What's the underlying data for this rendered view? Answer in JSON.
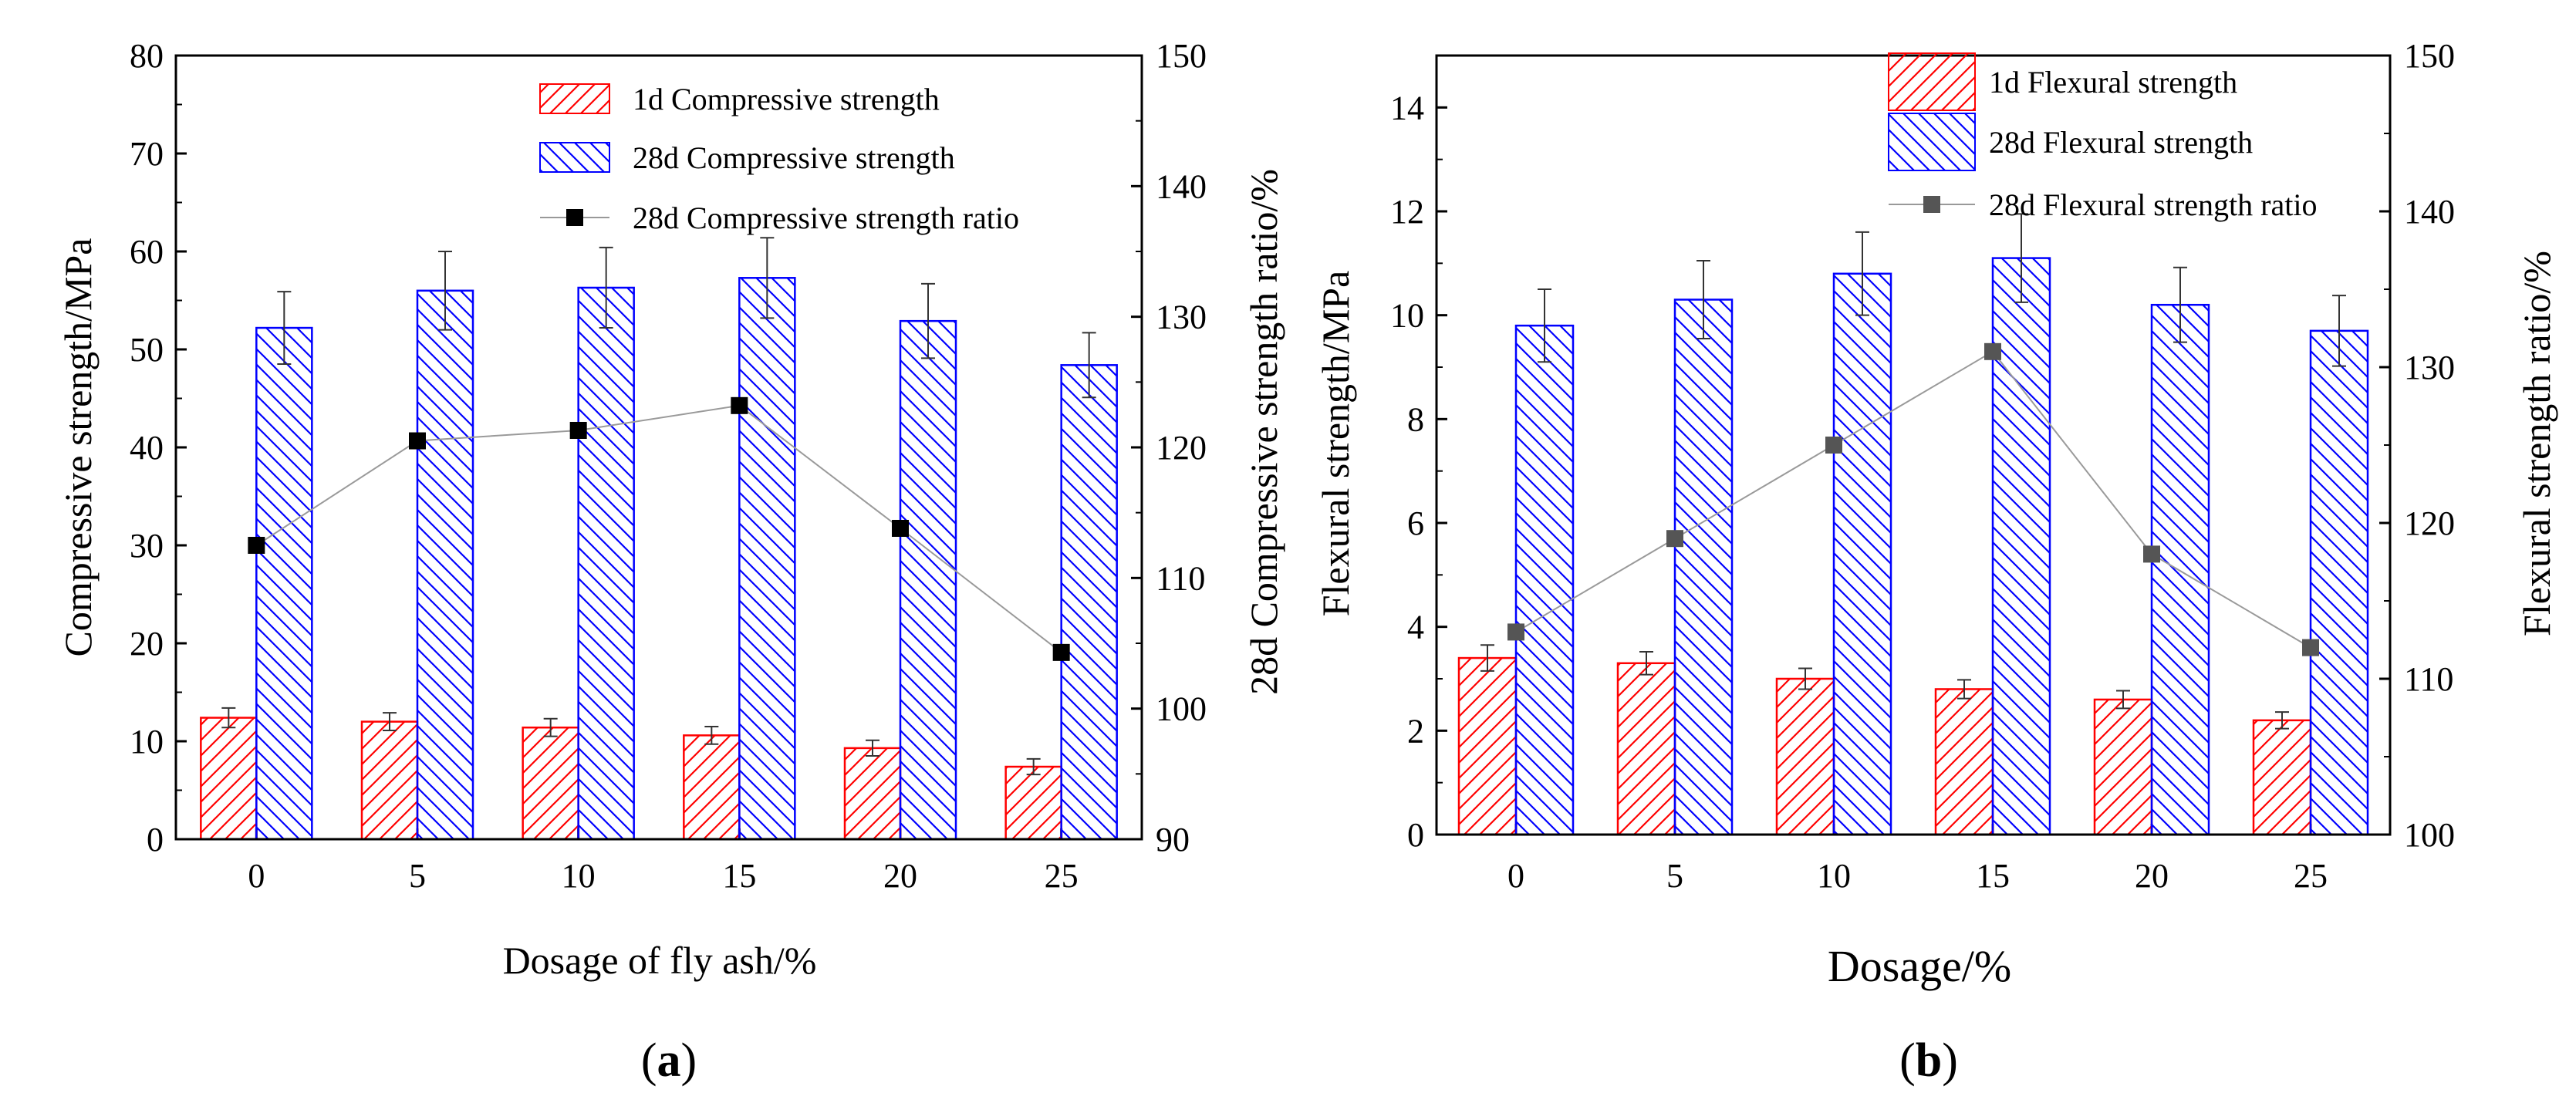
{
  "chart_data": [
    {
      "type": "bar",
      "panel_label_open": "(",
      "panel_label_letter": "a",
      "panel_label_close": ")",
      "categories": [
        "0",
        "5",
        "10",
        "15",
        "20",
        "25"
      ],
      "xlabel": "Dosage of fly ash/%",
      "ylabel": "Compressive strength/MPa",
      "y2label": "28d Compressive strength ratio/%",
      "ylim": [
        0,
        80
      ],
      "yticks": [
        0,
        10,
        20,
        30,
        40,
        50,
        60,
        70,
        80
      ],
      "y2lim": [
        90,
        150
      ],
      "y2ticks": [
        90,
        100,
        110,
        120,
        130,
        140,
        150
      ],
      "series": [
        {
          "name": "1d Compressive strength",
          "kind": "bar",
          "axis": "left",
          "color": "#ff0000",
          "hatch": "forward",
          "values": [
            12.4,
            12.0,
            11.4,
            10.6,
            9.3,
            7.4
          ],
          "errors": [
            1.0,
            0.9,
            0.9,
            0.9,
            0.8,
            0.8
          ]
        },
        {
          "name": "28d Compressive strength",
          "kind": "bar",
          "axis": "left",
          "color": "#0000ff",
          "hatch": "back",
          "values": [
            52.2,
            56.0,
            56.3,
            57.3,
            52.9,
            48.4
          ],
          "errors": [
            3.7,
            4.0,
            4.1,
            4.1,
            3.8,
            3.3
          ]
        },
        {
          "name": "28d Compressive strength ratio",
          "kind": "line",
          "axis": "right",
          "color": "#000000",
          "values": [
            112.5,
            120.5,
            121.3,
            123.2,
            113.8,
            104.3
          ]
        }
      ]
    },
    {
      "type": "bar",
      "panel_label_open": "(",
      "panel_label_letter": "b",
      "panel_label_close": ")",
      "categories": [
        "0",
        "5",
        "10",
        "15",
        "20",
        "25"
      ],
      "xlabel": "Dosage/%",
      "ylabel": "Flexural strength/MPa",
      "y2label": "Flexural strength ratio/%",
      "ylim": [
        0,
        15
      ],
      "yticks": [
        0,
        2,
        4,
        6,
        8,
        10,
        12,
        14
      ],
      "y2lim": [
        100,
        150
      ],
      "y2ticks": [
        100,
        110,
        120,
        130,
        140,
        150
      ],
      "series": [
        {
          "name": "1d Flexural strength",
          "kind": "bar",
          "axis": "left",
          "color": "#ff0000",
          "hatch": "forward",
          "values": [
            3.4,
            3.3,
            3.0,
            2.8,
            2.6,
            2.2
          ],
          "errors": [
            0.25,
            0.22,
            0.2,
            0.18,
            0.17,
            0.16
          ]
        },
        {
          "name": "28d Flexural strength",
          "kind": "bar",
          "axis": "left",
          "color": "#0000ff",
          "hatch": "back",
          "values": [
            9.8,
            10.3,
            10.8,
            11.1,
            10.2,
            9.7
          ],
          "errors": [
            0.7,
            0.75,
            0.8,
            0.85,
            0.72,
            0.68
          ]
        },
        {
          "name": "28d Flexural strength ratio",
          "kind": "line",
          "axis": "right",
          "color": "#555555",
          "values": [
            113.0,
            119.0,
            125.0,
            131.0,
            118.0,
            112.0
          ]
        }
      ]
    }
  ]
}
